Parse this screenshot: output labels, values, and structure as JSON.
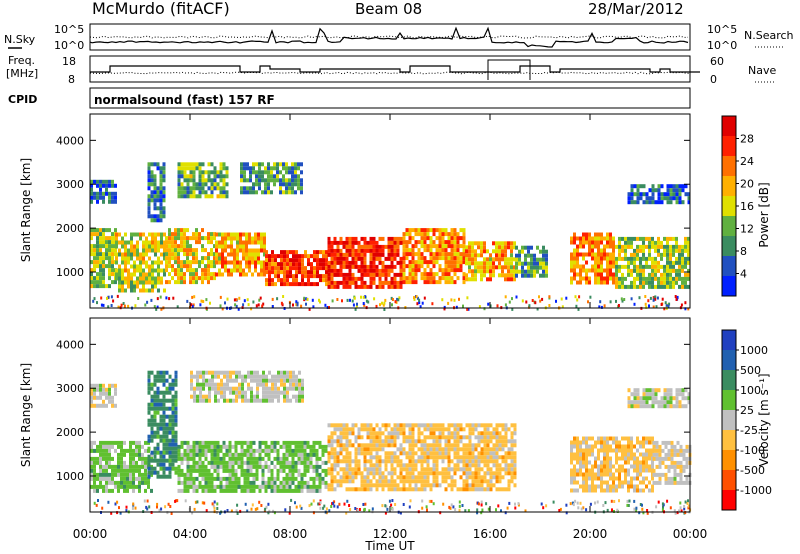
{
  "header": {
    "station": "McMurdo (fitACF)",
    "beam": "Beam 08",
    "date": "28/Mar/2012"
  },
  "top_panel": {
    "left_label": "N.Sky",
    "right_label": "N.Search",
    "left_tick_top": "10^5",
    "left_tick_bottom": "10^0",
    "right_tick_top": "10^5",
    "right_tick_bottom": "10^0"
  },
  "freq_panel": {
    "left_label_line1": "Freq.",
    "left_label_line2": "[MHz]",
    "right_label": "Nave",
    "left_ticks": [
      "18",
      "8"
    ],
    "right_ticks": [
      "60",
      "0"
    ]
  },
  "cpid": {
    "label": "CPID",
    "value": "normalsound (fast) 157 RF"
  },
  "colors": {
    "power": [
      "#0020ff",
      "#2050c0",
      "#3a8c60",
      "#60b040",
      "#e0e000",
      "#ffb000",
      "#ff7000",
      "#ff2000",
      "#e00000"
    ],
    "velocity": [
      "#ff0000",
      "#ff5000",
      "#ff9000",
      "#ffc040",
      "#c0c0c0",
      "#60c030",
      "#3a8c60",
      "#2060b0",
      "#2040c0"
    ]
  },
  "chart_data": [
    {
      "type": "heatmap",
      "name": "power",
      "xlabel": "",
      "ylabel": "Slant Range [km]",
      "x_ticks": [
        "00:00",
        "04:00",
        "08:00",
        "12:00",
        "16:00",
        "20:00",
        "00:00"
      ],
      "xlim_hours": [
        0,
        24
      ],
      "y_ticks": [
        1000,
        2000,
        3000,
        4000
      ],
      "ylim": [
        180,
        4600
      ],
      "colorbar_label": "Power [dB]",
      "colorbar_ticks": [
        "4",
        "8",
        "12",
        "16",
        "20",
        "24",
        "28"
      ],
      "colorbar_range": [
        0,
        32
      ],
      "echo_regions": [
        {
          "t0": 0.0,
          "t1": 1.0,
          "r0": 700,
          "r1": 2000,
          "value": 14
        },
        {
          "t0": 0.0,
          "t1": 1.0,
          "r0": 2600,
          "r1": 3100,
          "value": 6
        },
        {
          "t0": 1.0,
          "t1": 3.0,
          "r0": 600,
          "r1": 1900,
          "value": 16
        },
        {
          "t0": 2.3,
          "t1": 3.0,
          "r0": 2200,
          "r1": 3500,
          "value": 8
        },
        {
          "t0": 3.0,
          "t1": 5.0,
          "r0": 800,
          "r1": 2000,
          "value": 18
        },
        {
          "t0": 3.5,
          "t1": 5.5,
          "r0": 2700,
          "r1": 3500,
          "value": 12
        },
        {
          "t0": 5.0,
          "t1": 7.0,
          "r0": 900,
          "r1": 1900,
          "value": 20
        },
        {
          "t0": 6.0,
          "t1": 8.5,
          "r0": 2800,
          "r1": 3500,
          "value": 10
        },
        {
          "t0": 7.0,
          "t1": 9.5,
          "r0": 700,
          "r1": 1500,
          "value": 26
        },
        {
          "t0": 9.5,
          "t1": 12.5,
          "r0": 700,
          "r1": 1800,
          "value": 28
        },
        {
          "t0": 12.5,
          "t1": 15.0,
          "r0": 800,
          "r1": 2000,
          "value": 22
        },
        {
          "t0": 15.0,
          "t1": 17.0,
          "r0": 800,
          "r1": 1700,
          "value": 20
        },
        {
          "t0": 17.0,
          "t1": 18.3,
          "r0": 900,
          "r1": 1600,
          "value": 10
        },
        {
          "t0": 19.2,
          "t1": 21.0,
          "r0": 800,
          "r1": 1900,
          "value": 22
        },
        {
          "t0": 21.0,
          "t1": 24.0,
          "r0": 700,
          "r1": 1800,
          "value": 14
        },
        {
          "t0": 21.5,
          "t1": 24.0,
          "r0": 2600,
          "r1": 3000,
          "value": 6
        }
      ]
    },
    {
      "type": "heatmap",
      "name": "velocity",
      "xlabel": "Time UT",
      "ylabel": "Slant Range [km]",
      "x_ticks": [
        "00:00",
        "04:00",
        "08:00",
        "12:00",
        "16:00",
        "20:00",
        "00:00"
      ],
      "xlim_hours": [
        0,
        24
      ],
      "y_ticks": [
        1000,
        2000,
        3000,
        4000
      ],
      "ylim": [
        180,
        4600
      ],
      "colorbar_label": "Velocity [m s⁻¹]",
      "colorbar_ticks": [
        "1000",
        "500",
        "100",
        "25",
        "-25",
        "-100",
        "-500",
        "-1000"
      ],
      "colorbar_range": [
        -1500,
        1500
      ],
      "echo_regions": [
        {
          "t0": 0.0,
          "t1": 2.5,
          "r0": 700,
          "r1": 1800,
          "value": 300
        },
        {
          "t0": 0.0,
          "t1": 1.0,
          "r0": 2600,
          "r1": 3100,
          "value": 0
        },
        {
          "t0": 2.3,
          "t1": 3.5,
          "r0": 1000,
          "r1": 3400,
          "value": 700
        },
        {
          "t0": 3.5,
          "t1": 9.5,
          "r0": 700,
          "r1": 1800,
          "value": 300
        },
        {
          "t0": 4.0,
          "t1": 8.5,
          "r0": 2700,
          "r1": 3400,
          "value": 0
        },
        {
          "t0": 9.5,
          "t1": 17.0,
          "r0": 700,
          "r1": 2200,
          "value": -300
        },
        {
          "t0": 19.2,
          "t1": 22.5,
          "r0": 700,
          "r1": 1900,
          "value": -300
        },
        {
          "t0": 22.5,
          "t1": 24.0,
          "r0": 800,
          "r1": 1800,
          "value": -80
        },
        {
          "t0": 21.5,
          "t1": 24.0,
          "r0": 2600,
          "r1": 3000,
          "value": 0
        }
      ]
    }
  ]
}
